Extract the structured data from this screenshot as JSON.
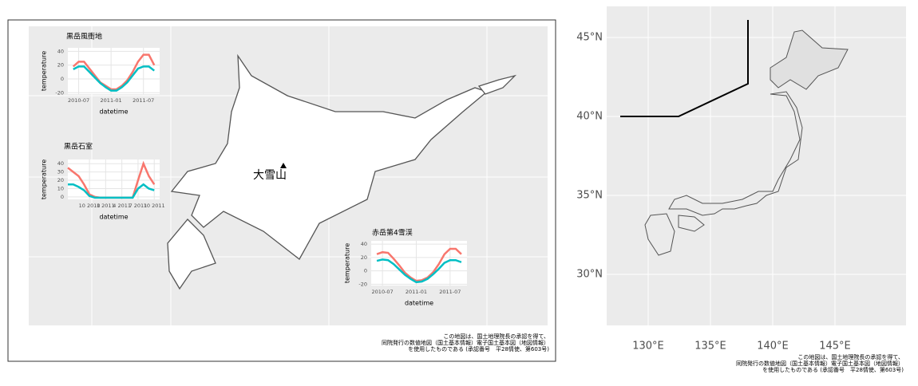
{
  "chart_data": [
    {
      "type": "line",
      "title": "黒岳風衝地",
      "xlabel": "datetime",
      "ylabel": "temperature",
      "x": [
        "2010-06",
        "2010-07",
        "2010-08",
        "2010-09",
        "2010-10",
        "2010-11",
        "2010-12",
        "2011-01",
        "2011-02",
        "2011-03",
        "2011-04",
        "2011-05",
        "2011-06",
        "2011-07",
        "2011-08",
        "2011-09"
      ],
      "series": [
        {
          "color": "#f8766d",
          "values": [
            18,
            25,
            25,
            15,
            5,
            -5,
            -10,
            -15,
            -15,
            -10,
            -2,
            10,
            25,
            35,
            35,
            20
          ]
        },
        {
          "color": "#00bfc4",
          "values": [
            14,
            18,
            18,
            10,
            2,
            -6,
            -12,
            -17,
            -17,
            -12,
            -5,
            5,
            15,
            18,
            18,
            12
          ]
        }
      ],
      "xlim": [
        "2010-05",
        "2011-10"
      ],
      "xticks": [
        "2010-07",
        "2011-01",
        "2011-07"
      ],
      "ylim": [
        -22,
        45
      ],
      "yticks": [
        -20,
        0,
        20,
        40
      ]
    },
    {
      "type": "line",
      "title": "黒岳石室",
      "xlabel": "datetime",
      "ylabel": "temperature",
      "x": [
        "2010-06",
        "2010-07",
        "2010-08",
        "2010-09",
        "2010-10",
        "2010-11",
        "2010-12",
        "2011-01",
        "2011-02",
        "2011-03",
        "2011-04",
        "2011-05",
        "2011-06",
        "2011-07",
        "2011-08",
        "2011-09",
        "2011-10"
      ],
      "series": [
        {
          "color": "#f8766d",
          "values": [
            35,
            30,
            25,
            15,
            3,
            0,
            -1,
            -1,
            -1,
            -1,
            -1,
            -1,
            -1,
            20,
            40,
            25,
            15
          ]
        },
        {
          "color": "#00bfc4",
          "values": [
            15,
            15,
            12,
            8,
            1,
            -1,
            -1,
            -1,
            -1,
            -1,
            -1,
            -1,
            -1,
            10,
            15,
            10,
            8
          ]
        }
      ],
      "xlim": [
        "2010-06",
        "2011-11"
      ],
      "xticks": [
        {
          "value": "2010-10",
          "label": "10 2010"
        },
        {
          "value": "2011-01",
          "label": "1 2011"
        },
        {
          "value": "2011-04",
          "label": "4 2011"
        },
        {
          "value": "2011-07",
          "label": "7 2011"
        },
        {
          "value": "2011-10",
          "label": "10 2011"
        }
      ],
      "ylim": [
        -3,
        45
      ],
      "yticks": [
        0,
        10,
        20,
        30,
        40
      ]
    },
    {
      "type": "line",
      "title": "赤岳第4雪渓",
      "xlabel": "datetime",
      "ylabel": "temperature",
      "x": [
        "2010-06",
        "2010-07",
        "2010-08",
        "2010-09",
        "2010-10",
        "2010-11",
        "2010-12",
        "2011-01",
        "2011-02",
        "2011-03",
        "2011-04",
        "2011-05",
        "2011-06",
        "2011-07",
        "2011-08",
        "2011-09"
      ],
      "series": [
        {
          "color": "#f8766d",
          "values": [
            25,
            28,
            27,
            18,
            8,
            -3,
            -10,
            -15,
            -14,
            -10,
            -2,
            10,
            25,
            33,
            33,
            25
          ]
        },
        {
          "color": "#00bfc4",
          "values": [
            15,
            17,
            16,
            10,
            2,
            -6,
            -12,
            -17,
            -16,
            -12,
            -5,
            3,
            12,
            16,
            16,
            13
          ]
        }
      ],
      "xlim": [
        "2010-05",
        "2011-10"
      ],
      "xticks": [
        "2010-07",
        "2011-01",
        "2011-07"
      ],
      "ylim": [
        -22,
        45
      ],
      "yticks": [
        -20,
        0,
        20,
        40
      ]
    }
  ],
  "left_map": {
    "label": "大雪山",
    "attribution": [
      "この地図は、国土地理院長の承認を得て、",
      "同院発行の数値地図（国土基本情報）電子国土基本図（地図情報）",
      "を使用したものである (承認番号　平28情使、第603号)"
    ]
  },
  "right_map": {
    "lat_ticks": [
      {
        "value": 45,
        "label": "45°N"
      },
      {
        "value": 40,
        "label": "40°N"
      },
      {
        "value": 35,
        "label": "35°N"
      },
      {
        "value": 30,
        "label": "30°N"
      }
    ],
    "lon_ticks": [
      {
        "value": 130,
        "label": "130°E"
      },
      {
        "value": 135,
        "label": "135°E"
      },
      {
        "value": 140,
        "label": "140°E"
      },
      {
        "value": 145,
        "label": "145°E"
      }
    ],
    "attribution": [
      "この地図は、国土地理院長の承認を得て、",
      "同院発行の数値地図（国土基本情報）電子国土基本図（地図情報）",
      "を使用したものである (承認番号　平28情使、第603号)"
    ]
  }
}
